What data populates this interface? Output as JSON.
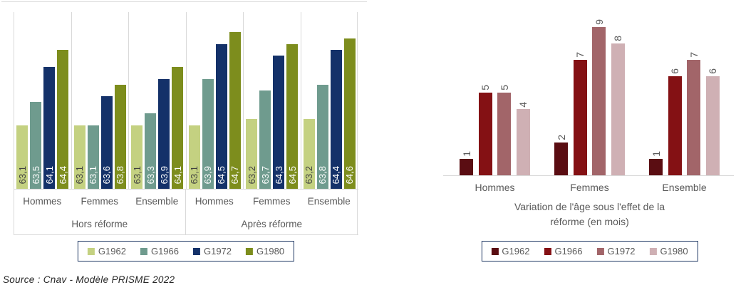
{
  "source_note": "Source : Cnav - Modèle PRISME 2022",
  "palette": {
    "axis_text": "#595959",
    "grid_line": "#d9d9d9",
    "legend_border": "#1f3864",
    "dark_label_on_light_bar": "#404040",
    "light_label_on_dark_bar": "#ffffff"
  },
  "chart_data": [
    {
      "type": "bar",
      "title": "",
      "categories": [
        "Hommes",
        "Femmes",
        "Ensemble",
        "Hommes",
        "Femmes",
        "Ensemble"
      ],
      "group_labels": [
        "Hors réforme",
        "Après réforme"
      ],
      "series": [
        {
          "name": "G1962",
          "color": "#c4d181",
          "label_color": "#404040",
          "values": [
            63.1,
            63.1,
            63.1,
            63.1,
            63.2,
            63.2
          ],
          "labels": [
            "63,1",
            "63,1",
            "63,1",
            "63,1",
            "63,2",
            "63,2"
          ]
        },
        {
          "name": "G1966",
          "color": "#6f9b8e",
          "label_color": "#ffffff",
          "values": [
            63.5,
            63.1,
            63.3,
            63.9,
            63.7,
            63.8
          ],
          "labels": [
            "63,5",
            "63,1",
            "63,3",
            "63,9",
            "63,7",
            "63,8"
          ]
        },
        {
          "name": "G1972",
          "color": "#143169",
          "label_color": "#ffffff",
          "values": [
            64.1,
            63.6,
            63.9,
            64.5,
            64.3,
            64.4
          ],
          "labels": [
            "64,1",
            "63,6",
            "63,9",
            "64,5",
            "64,3",
            "64,4"
          ]
        },
        {
          "name": "G1980",
          "color": "#7d8d1d",
          "label_color": "#ffffff",
          "values": [
            64.4,
            63.8,
            64.1,
            64.7,
            64.5,
            64.6
          ],
          "labels": [
            "64,4",
            "63,8",
            "64,1",
            "64,7",
            "64,5",
            "64,6"
          ]
        }
      ],
      "ylim": [
        62,
        65.05
      ],
      "legend": [
        "G1962",
        "G1966",
        "G1972",
        "G1980"
      ],
      "legend_position": "bottom",
      "grid": "category separators on, no y-axis labels"
    },
    {
      "type": "bar",
      "title": "Variation de l'âge sous l'effet de la réforme (en mois)",
      "title_lines": [
        "Variation de l'âge sous l'effet de la",
        "réforme (en mois)"
      ],
      "categories": [
        "Hommes",
        "Femmes",
        "Ensemble"
      ],
      "series": [
        {
          "name": "G1962",
          "color": "#5a0d12",
          "values": [
            1,
            2,
            1
          ],
          "labels": [
            "1",
            "2",
            "1"
          ]
        },
        {
          "name": "G1966",
          "color": "#841114",
          "values": [
            5,
            7,
            6
          ],
          "labels": [
            "5",
            "7",
            "6"
          ]
        },
        {
          "name": "G1972",
          "color": "#a26569",
          "values": [
            5,
            9,
            7
          ],
          "labels": [
            "5",
            "9",
            "7"
          ]
        },
        {
          "name": "G1980",
          "color": "#cfb0b4",
          "values": [
            4,
            8,
            6
          ],
          "labels": [
            "4",
            "8",
            "6"
          ]
        }
      ],
      "ylim": [
        0,
        10.1
      ],
      "value_label_color": "#595959",
      "legend": [
        "G1962",
        "G1966",
        "G1972",
        "G1980"
      ],
      "legend_position": "bottom",
      "grid": "off, x-axis line only"
    }
  ]
}
